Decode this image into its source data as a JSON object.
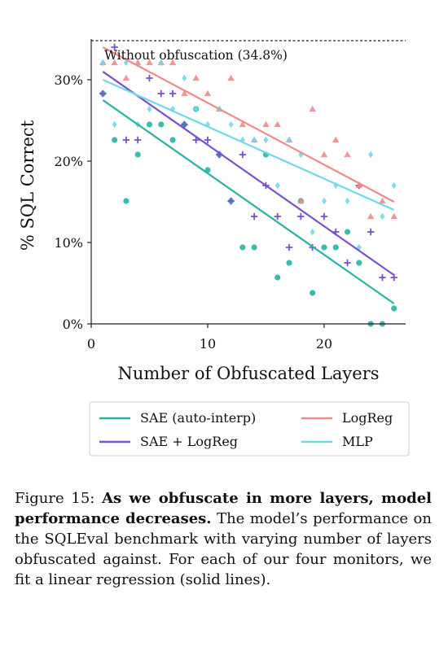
{
  "chart_data": {
    "type": "scatter",
    "xlabel": "Number of Obfuscated Layers",
    "ylabel": "% SQL Correct",
    "xlim": [
      0,
      27
    ],
    "ylim": [
      0,
      35
    ],
    "xticks": [
      "0",
      "10",
      "20"
    ],
    "yticks": [
      "0%",
      "10%",
      "20%",
      "30%"
    ],
    "grid": false,
    "legend_position": "bottom, below chart (two columns)",
    "reference_line": {
      "label": "Without obfuscation (34.8%)",
      "y": 34.8
    },
    "series": [
      {
        "name": "SAE (auto-interp)",
        "color": "#27b3a4",
        "marker": "circle",
        "fit": [
          [
            1,
            27.5
          ],
          [
            26,
            2.5
          ]
        ],
        "points": [
          [
            1,
            28.3
          ],
          [
            2,
            22.6
          ],
          [
            3,
            15.1
          ],
          [
            4,
            20.8
          ],
          [
            5,
            24.5
          ],
          [
            6,
            24.5
          ],
          [
            7,
            22.6
          ],
          [
            8,
            24.5
          ],
          [
            9,
            26.4
          ],
          [
            10,
            18.9
          ],
          [
            11,
            20.8
          ],
          [
            12,
            15.1
          ],
          [
            13,
            9.4
          ],
          [
            14,
            9.4
          ],
          [
            15,
            20.8
          ],
          [
            16,
            5.7
          ],
          [
            17,
            7.5
          ],
          [
            18,
            15.1
          ],
          [
            19,
            3.8
          ],
          [
            20,
            9.4
          ],
          [
            21,
            9.4
          ],
          [
            22,
            11.3
          ],
          [
            23,
            7.5
          ],
          [
            24,
            0.0
          ],
          [
            25,
            0.0
          ],
          [
            26,
            1.9
          ]
        ]
      },
      {
        "name": "SAE + LogReg",
        "color": "#7a4fd0",
        "marker": "plus",
        "fit": [
          [
            1,
            31.0
          ],
          [
            26,
            6.0
          ]
        ],
        "points": [
          [
            1,
            28.3
          ],
          [
            2,
            34.0
          ],
          [
            3,
            22.6
          ],
          [
            4,
            22.6
          ],
          [
            5,
            30.2
          ],
          [
            6,
            28.3
          ],
          [
            7,
            28.3
          ],
          [
            8,
            24.5
          ],
          [
            9,
            22.6
          ],
          [
            10,
            22.6
          ],
          [
            11,
            20.8
          ],
          [
            12,
            15.1
          ],
          [
            13,
            20.8
          ],
          [
            14,
            13.2
          ],
          [
            15,
            17.0
          ],
          [
            16,
            13.2
          ],
          [
            17,
            9.4
          ],
          [
            18,
            13.2
          ],
          [
            19,
            9.4
          ],
          [
            20,
            13.2
          ],
          [
            21,
            11.3
          ],
          [
            22,
            7.5
          ],
          [
            23,
            17.0
          ],
          [
            24,
            11.3
          ],
          [
            25,
            5.7
          ],
          [
            26,
            5.7
          ]
        ]
      },
      {
        "name": "LogReg",
        "color": "#ef8a8a",
        "marker": "triangle",
        "fit": [
          [
            1,
            34.0
          ],
          [
            26,
            15.0
          ]
        ],
        "points": [
          [
            1,
            32.1
          ],
          [
            2,
            32.1
          ],
          [
            3,
            30.2
          ],
          [
            4,
            32.1
          ],
          [
            5,
            32.1
          ],
          [
            6,
            32.1
          ],
          [
            7,
            32.1
          ],
          [
            8,
            28.3
          ],
          [
            9,
            30.2
          ],
          [
            10,
            28.3
          ],
          [
            11,
            26.4
          ],
          [
            12,
            30.2
          ],
          [
            13,
            24.5
          ],
          [
            14,
            22.6
          ],
          [
            15,
            24.5
          ],
          [
            16,
            24.5
          ],
          [
            17,
            22.6
          ],
          [
            18,
            15.1
          ],
          [
            19,
            26.4
          ],
          [
            20,
            20.8
          ],
          [
            21,
            22.6
          ],
          [
            22,
            20.8
          ],
          [
            23,
            17.0
          ],
          [
            24,
            13.2
          ],
          [
            25,
            15.1
          ],
          [
            26,
            13.2
          ]
        ]
      },
      {
        "name": "MLP",
        "color": "#6fd9ec",
        "marker": "diamond",
        "fit": [
          [
            1,
            30.0
          ],
          [
            26,
            14.0
          ]
        ],
        "points": [
          [
            1,
            32.1
          ],
          [
            2,
            24.5
          ],
          [
            3,
            32.1
          ],
          [
            4,
            24.5
          ],
          [
            5,
            26.4
          ],
          [
            6,
            32.1
          ],
          [
            7,
            26.4
          ],
          [
            8,
            30.2
          ],
          [
            9,
            26.4
          ],
          [
            10,
            24.5
          ],
          [
            11,
            26.4
          ],
          [
            12,
            24.5
          ],
          [
            13,
            22.6
          ],
          [
            14,
            22.6
          ],
          [
            15,
            22.6
          ],
          [
            16,
            17.0
          ],
          [
            17,
            22.6
          ],
          [
            18,
            20.8
          ],
          [
            19,
            11.3
          ],
          [
            20,
            15.1
          ],
          [
            21,
            17.0
          ],
          [
            22,
            15.1
          ],
          [
            23,
            9.4
          ],
          [
            24,
            20.8
          ],
          [
            25,
            13.2
          ],
          [
            26,
            17.0
          ]
        ]
      }
    ]
  },
  "caption": {
    "label": "Figure 15:",
    "bold": "As we obfuscate in more layers, model performance decreases.",
    "text": "The model’s performance on the SQLEval benchmark with varying number of layers obfuscated against. For each of our four monitors, we fit a linear regression (solid lines)."
  }
}
